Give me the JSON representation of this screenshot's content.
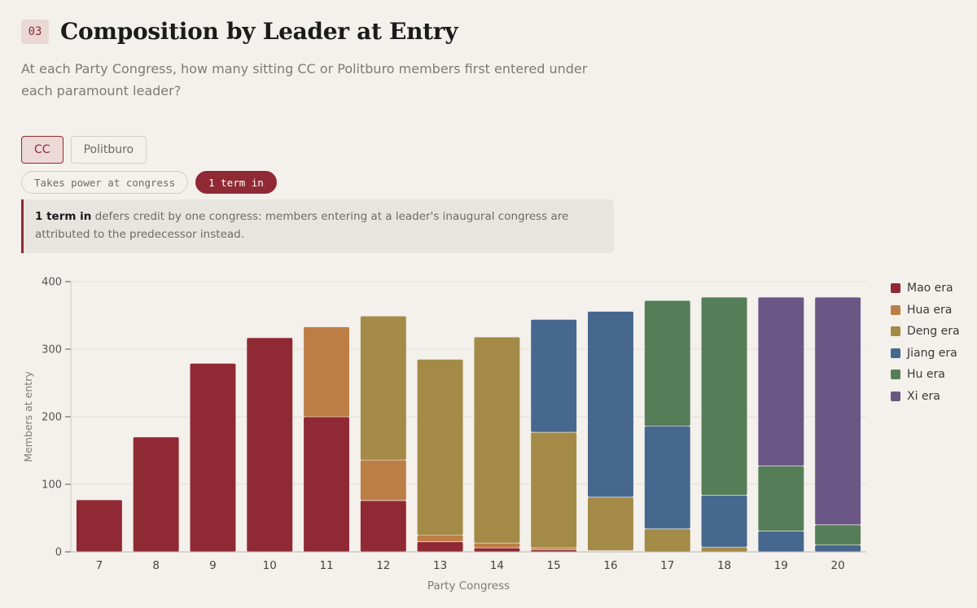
{
  "header": {
    "badge": "03",
    "title": "Composition by Leader at Entry",
    "subtitle": "At each Party Congress, how many sitting CC or Politburo members first entered under each paramount leader?"
  },
  "body_toggle": {
    "options": [
      "CC",
      "Politburo"
    ],
    "selected": "CC"
  },
  "mode_toggle": {
    "options": [
      "Takes power at congress",
      "1 term in"
    ],
    "selected": "1 term in"
  },
  "note": {
    "bold": "1 term in",
    "text": " defers credit by one congress: members entering at a leader's inaugural congress are attributed to the predecessor instead."
  },
  "chart_data": {
    "type": "bar",
    "stacked": true,
    "xlabel": "Party Congress",
    "ylabel": "Members at entry",
    "ylim": [
      0,
      400
    ],
    "yticks": [
      0,
      100,
      200,
      300,
      400
    ],
    "categories": [
      "7",
      "8",
      "9",
      "10",
      "11",
      "12",
      "13",
      "14",
      "15",
      "16",
      "17",
      "18",
      "19",
      "20"
    ],
    "series": [
      {
        "name": "Mao era",
        "color": "#8f2a35",
        "values": [
          77,
          170,
          279,
          317,
          200,
          76,
          15,
          6,
          3,
          1,
          0,
          0,
          0,
          0
        ]
      },
      {
        "name": "Hua era",
        "color": "#bc7e45",
        "values": [
          0,
          0,
          0,
          0,
          133,
          60,
          10,
          7,
          3,
          1,
          0,
          0,
          0,
          0
        ]
      },
      {
        "name": "Deng era",
        "color": "#a38a47",
        "values": [
          0,
          0,
          0,
          0,
          0,
          213,
          260,
          305,
          171,
          79,
          34,
          7,
          0,
          0
        ]
      },
      {
        "name": "Jiang era",
        "color": "#47688e",
        "values": [
          0,
          0,
          0,
          0,
          0,
          0,
          0,
          0,
          167,
          275,
          152,
          77,
          31,
          10
        ]
      },
      {
        "name": "Hu era",
        "color": "#557e58",
        "values": [
          0,
          0,
          0,
          0,
          0,
          0,
          0,
          0,
          0,
          0,
          186,
          293,
          96,
          30
        ]
      },
      {
        "name": "Xi era",
        "color": "#6b5786",
        "values": [
          0,
          0,
          0,
          0,
          0,
          0,
          0,
          0,
          0,
          0,
          0,
          0,
          250,
          337
        ]
      }
    ]
  }
}
